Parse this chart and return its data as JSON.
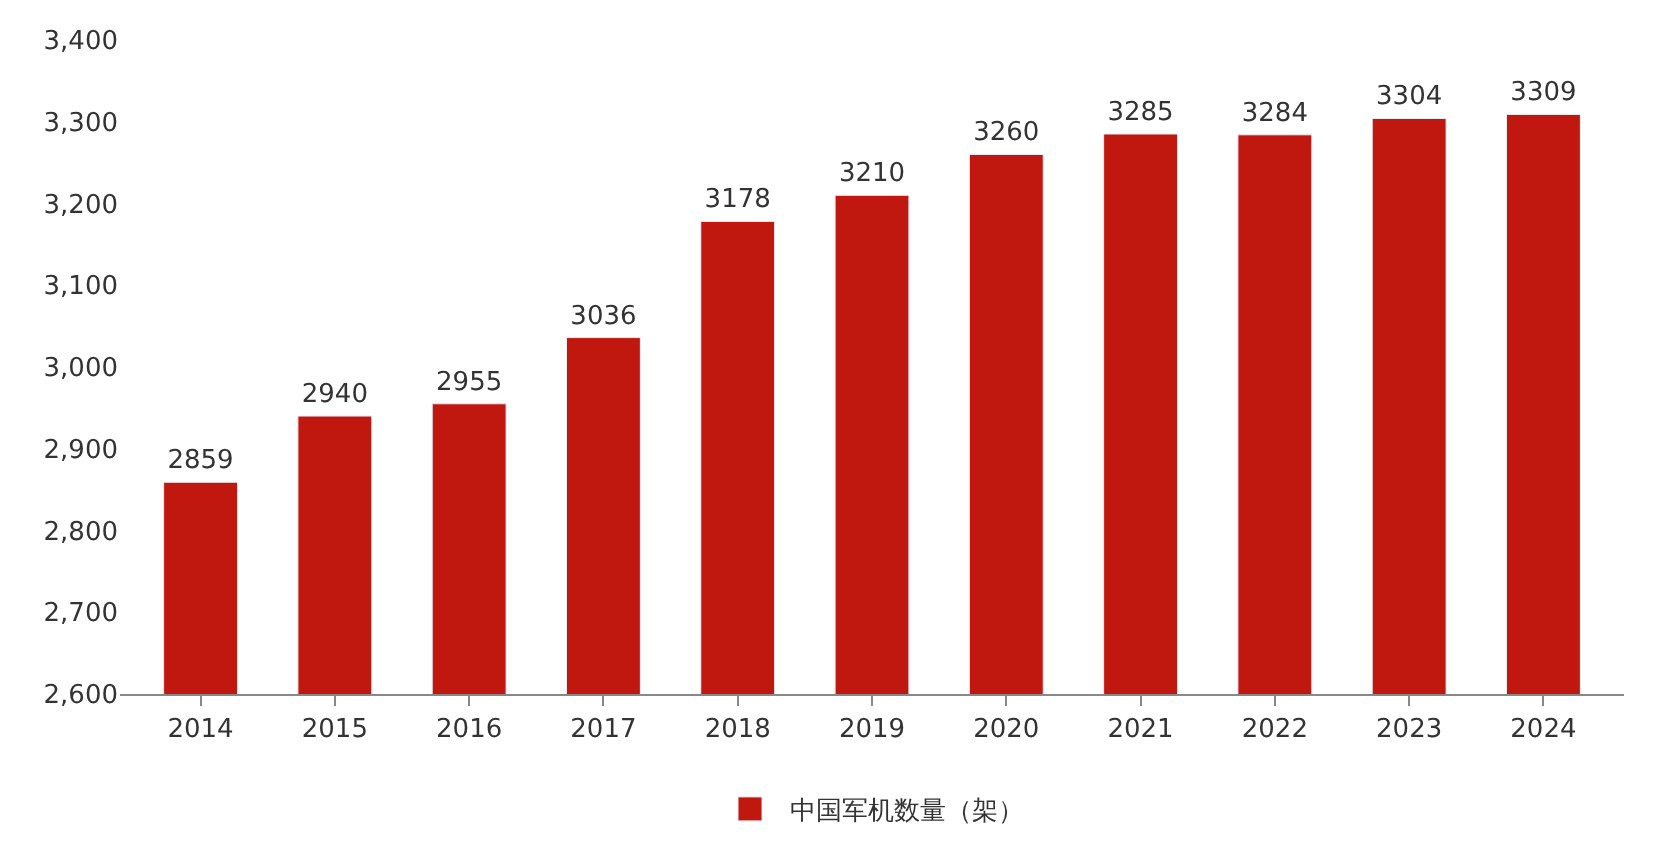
{
  "chart_data": {
    "type": "bar",
    "categories": [
      "2014",
      "2015",
      "2016",
      "2017",
      "2018",
      "2019",
      "2020",
      "2021",
      "2022",
      "2023",
      "2024"
    ],
    "series": [
      {
        "name": "中国军机数量（架）",
        "color": "#c0170f",
        "values": [
          2859,
          2940,
          2955,
          3036,
          3178,
          3210,
          3260,
          3285,
          3284,
          3304,
          3309
        ]
      }
    ],
    "ylim": [
      2600,
      3400
    ],
    "yticks": [
      {
        "value": 2600,
        "label": "2,600"
      },
      {
        "value": 2700,
        "label": "2,700"
      },
      {
        "value": 2800,
        "label": "2,800"
      },
      {
        "value": 2900,
        "label": "2,900"
      },
      {
        "value": 3000,
        "label": "3,000"
      },
      {
        "value": 3100,
        "label": "3,100"
      },
      {
        "value": 3200,
        "label": "3,200"
      },
      {
        "value": 3300,
        "label": "3,300"
      },
      {
        "value": 3400,
        "label": "3,400"
      }
    ],
    "data_labels": true,
    "legend": "bottom"
  }
}
